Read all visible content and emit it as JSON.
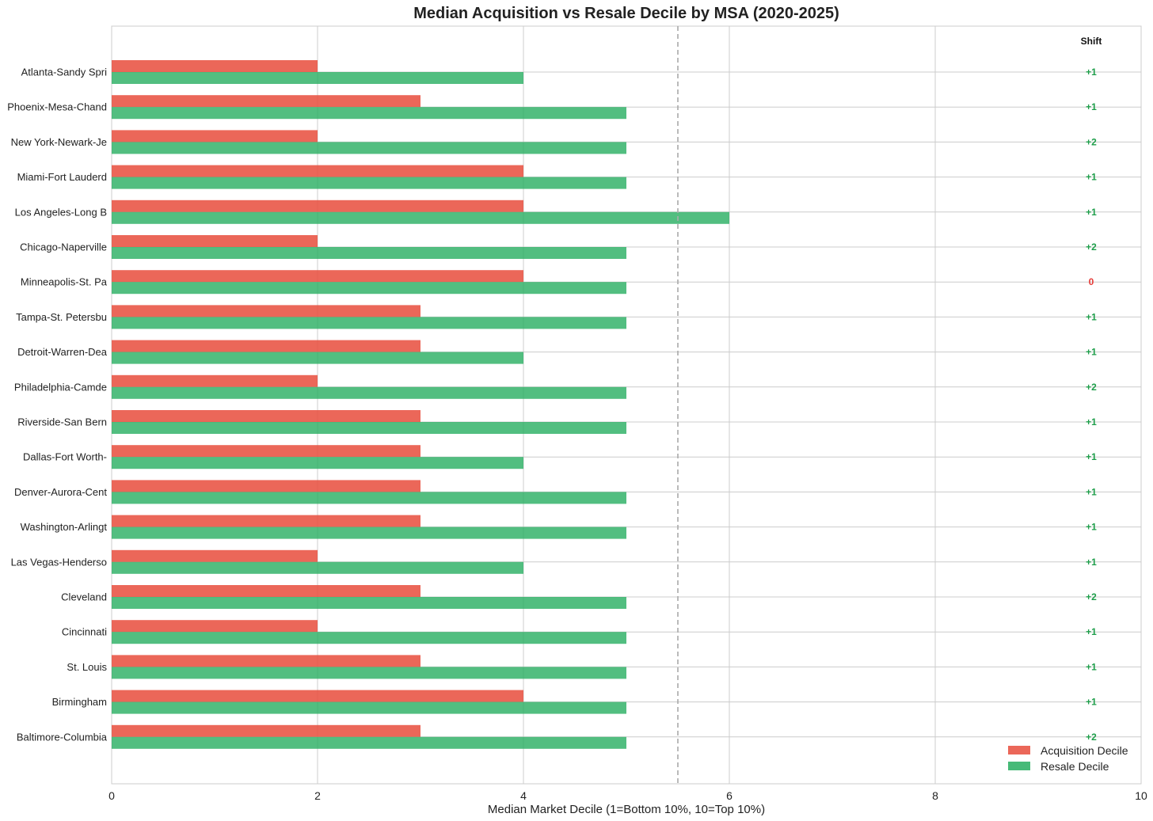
{
  "chart_data": {
    "type": "bar",
    "orientation": "horizontal",
    "title": "Median Acquisition vs Resale Decile by MSA (2020-2025)",
    "xlabel": "Median Market Decile (1=Bottom 10%, 10=Top 10%)",
    "ylabel": "",
    "xlim": [
      0,
      10
    ],
    "xticks": [
      "0",
      "2",
      "4",
      "6",
      "8",
      "10"
    ],
    "grid": true,
    "reference_line": 5.5,
    "legend_position": "bottom-right",
    "categories": [
      "Atlanta-Sandy Spri",
      "Phoenix-Mesa-Chand",
      "New York-Newark-Je",
      "Miami-Fort Lauderd",
      "Los Angeles-Long B",
      "Chicago-Naperville",
      "Minneapolis-St. Pa",
      "Tampa-St. Petersbu",
      "Detroit-Warren-Dea",
      "Philadelphia-Camde",
      "Riverside-San Bern",
      "Dallas-Fort Worth-",
      "Denver-Aurora-Cent",
      "Washington-Arlingt",
      "Las Vegas-Henderso",
      "Cleveland",
      "Cincinnati",
      "St. Louis",
      "Birmingham",
      "Baltimore-Columbia"
    ],
    "series": [
      {
        "name": "Acquisition Decile",
        "color": "#e74c3c",
        "values": [
          2,
          3,
          2,
          4,
          4,
          2,
          4,
          3,
          3,
          2,
          3,
          3,
          3,
          3,
          2,
          3,
          2,
          3,
          4,
          3
        ]
      },
      {
        "name": "Resale Decile",
        "color": "#27ae60",
        "values": [
          4,
          5,
          5,
          5,
          6,
          5,
          5,
          5,
          4,
          5,
          5,
          4,
          5,
          5,
          4,
          5,
          5,
          5,
          5,
          5
        ]
      }
    ],
    "shift_header": "Shift",
    "shift_labels": [
      "+1",
      "+1",
      "+2",
      "+1",
      "+1",
      "+2",
      "0",
      "+1",
      "+1",
      "+2",
      "+1",
      "+1",
      "+1",
      "+1",
      "+1",
      "+2",
      "+1",
      "+1",
      "+1",
      "+2"
    ],
    "shift_colors": {
      "positive": "#1e9e4a",
      "zero": "#e53935"
    }
  }
}
